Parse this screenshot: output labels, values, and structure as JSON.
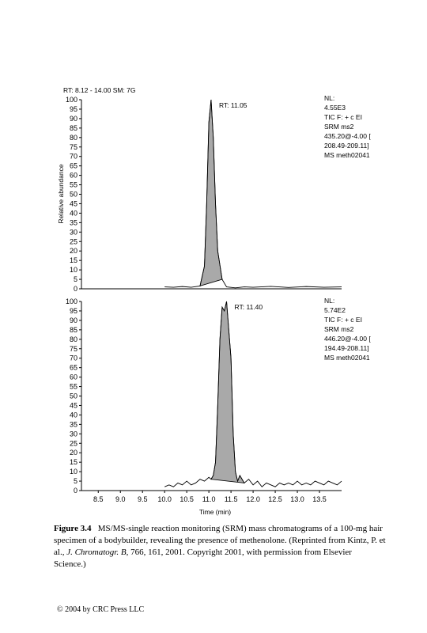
{
  "header": "RT: 8.12 - 14.00 SM: 7G",
  "y_axis_label": "Relative abundance",
  "chart_data": [
    {
      "type": "line",
      "peak_label": "RT: 11.05",
      "peak_rt": 11.05,
      "info": [
        "NL:",
        "4.55E3",
        "TIC F: + c EI",
        "SRM ms2",
        "435.20@-4.00 [",
        "208.49-209.11]",
        "MS meth02041"
      ],
      "xlim": [
        8.12,
        14.0
      ],
      "ylim": [
        0,
        100
      ],
      "yticks": [
        0,
        5,
        10,
        15,
        20,
        25,
        30,
        35,
        40,
        45,
        50,
        55,
        60,
        65,
        70,
        75,
        80,
        85,
        90,
        95,
        100
      ],
      "x": [
        10.0,
        10.2,
        10.4,
        10.6,
        10.8,
        10.9,
        10.95,
        11.0,
        11.05,
        11.1,
        11.15,
        11.2,
        11.3,
        11.4,
        11.6,
        11.8,
        12.0,
        12.4,
        12.8,
        13.2,
        13.6,
        14.0
      ],
      "y": [
        1,
        0.8,
        1.2,
        0.8,
        1.5,
        12,
        45,
        88,
        100,
        80,
        45,
        20,
        5,
        1,
        0.5,
        1,
        0.8,
        1.3,
        0.7,
        1.2,
        0.8,
        1
      ]
    },
    {
      "type": "line",
      "peak_label": "RT: 11.40",
      "peak_rt": 11.4,
      "info": [
        "NL:",
        "5.74E2",
        "TIC F: + c EI",
        "SRM ms2",
        "446.20@-4.00 [",
        "194.49-208.11]",
        "MS meth02041"
      ],
      "xlim": [
        8.12,
        14.0
      ],
      "ylim": [
        0,
        100
      ],
      "yticks": [
        0,
        5,
        10,
        15,
        20,
        25,
        30,
        35,
        40,
        45,
        50,
        55,
        60,
        65,
        70,
        75,
        80,
        85,
        90,
        95,
        100
      ],
      "xticks": [
        8.5,
        9.0,
        9.5,
        10.0,
        10.5,
        11.0,
        11.5,
        12.0,
        12.5,
        13.0,
        13.5
      ],
      "xlabel": "Time (min)",
      "x": [
        10.0,
        10.1,
        10.2,
        10.3,
        10.4,
        10.5,
        10.6,
        10.7,
        10.8,
        10.9,
        11.0,
        11.05,
        11.1,
        11.15,
        11.2,
        11.25,
        11.3,
        11.35,
        11.4,
        11.45,
        11.5,
        11.55,
        11.6,
        11.65,
        11.7,
        11.8,
        11.9,
        12.0,
        12.1,
        12.2,
        12.3,
        12.4,
        12.5,
        12.6,
        12.7,
        12.8,
        12.9,
        13.0,
        13.1,
        13.2,
        13.3,
        13.4,
        13.5,
        13.6,
        13.7,
        13.8,
        13.9,
        14.0
      ],
      "y": [
        2,
        3,
        2,
        4,
        3,
        5,
        3,
        4,
        6,
        5,
        7,
        6,
        8,
        15,
        45,
        80,
        97,
        95,
        100,
        85,
        70,
        30,
        10,
        5,
        8,
        4,
        6,
        3,
        5,
        2,
        4,
        3,
        2,
        4,
        3,
        4,
        3,
        5,
        3,
        4,
        3,
        5,
        4,
        3,
        5,
        4,
        3,
        5
      ]
    }
  ],
  "caption": {
    "label": "Figure 3.4",
    "text1": "MS/MS-single reaction monitoring (SRM) mass chromatograms of a 100-mg hair specimen of a bodybuilder, revealing the presence of methenolone. (Reprinted from Kintz, P. et al., ",
    "journal": "J. Chromatogr. B",
    "text2": ", 766, 161, 2001. Copyright 2001, with permission from Elsevier Science.)"
  },
  "footer": "© 2004 by CRC Press LLC"
}
